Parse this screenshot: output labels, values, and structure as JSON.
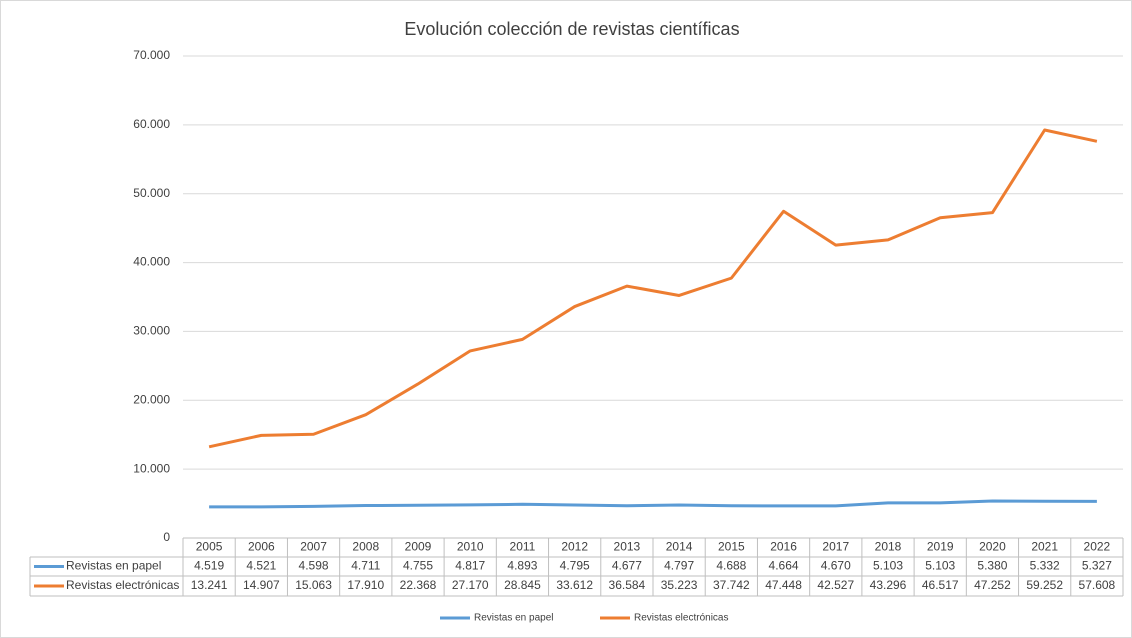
{
  "chart_data": {
    "type": "line",
    "title": "Evolución colección de revistas científicas",
    "categories": [
      "2005",
      "2006",
      "2007",
      "2008",
      "2009",
      "2010",
      "2011",
      "2012",
      "2013",
      "2014",
      "2015",
      "2016",
      "2017",
      "2018",
      "2019",
      "2020",
      "2021",
      "2022"
    ],
    "series": [
      {
        "name": "Revistas en papel",
        "color": "#5b9bd5",
        "values": [
          4519,
          4521,
          4598,
          4711,
          4755,
          4817,
          4893,
          4795,
          4677,
          4797,
          4688,
          4664,
          4670,
          5103,
          5103,
          5380,
          5332,
          5327
        ],
        "value_labels": [
          "4.519",
          "4.521",
          "4.598",
          "4.711",
          "4.755",
          "4.817",
          "4.893",
          "4.795",
          "4.677",
          "4.797",
          "4.688",
          "4.664",
          "4.670",
          "5.103",
          "5.103",
          "5.380",
          "5.332",
          "5.327"
        ]
      },
      {
        "name": "Revistas electrónicas",
        "color": "#ed7d31",
        "values": [
          13241,
          14907,
          15063,
          17910,
          22368,
          27170,
          28845,
          33612,
          36584,
          35223,
          37742,
          47448,
          42527,
          43296,
          46517,
          47252,
          59252,
          57608
        ],
        "value_labels": [
          "13.241",
          "14.907",
          "15.063",
          "17.910",
          "22.368",
          "27.170",
          "28.845",
          "33.612",
          "36.584",
          "35.223",
          "37.742",
          "47.448",
          "42.527",
          "43.296",
          "46.517",
          "47.252",
          "59.252",
          "57.608"
        ]
      }
    ],
    "ylim": [
      0,
      70000
    ],
    "yticks": [
      0,
      {
        "value": 10000,
        "label": "10.000"
      },
      {
        "value": 20000,
        "label": "20.000"
      },
      {
        "value": 30000,
        "label": "30.000"
      },
      {
        "value": 40000,
        "label": "40.000"
      },
      {
        "value": 50000,
        "label": "50.000"
      },
      {
        "value": 60000,
        "label": "60.000"
      },
      {
        "value": 70000,
        "label": "70.000"
      }
    ],
    "grid": true,
    "legend": "bottom"
  }
}
